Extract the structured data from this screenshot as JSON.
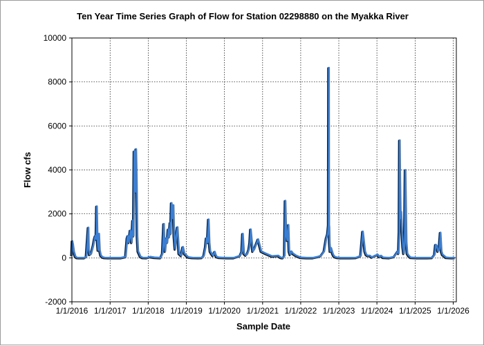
{
  "chart_data": {
    "type": "line",
    "title": "Ten Year Time Series Graph of Flow for Station 02298880 on the Myakka River",
    "xlabel": "Sample Date",
    "ylabel": "Flow cfs",
    "ylim": [
      -2000,
      10000
    ],
    "yticks": [
      -2000,
      0,
      2000,
      4000,
      6000,
      8000,
      10000
    ],
    "xlim": [
      "2016-01-01",
      "2026-01-31"
    ],
    "xticks": [
      "1/1/2016",
      "1/1/2017",
      "1/1/2018",
      "1/1/2019",
      "1/1/2020",
      "1/1/2021",
      "1/1/2022",
      "1/1/2023",
      "1/1/2024",
      "1/1/2025",
      "1/1/2026"
    ],
    "grid": true,
    "line_color": "#3a7fd5",
    "shadow_color": "#1a1a1a",
    "series": [
      {
        "x": [
          "2016-01-01",
          "2016-01-06",
          "2016-01-12",
          "2016-01-22",
          "2016-02-05",
          "2016-02-20",
          "2016-03-10",
          "2016-04-01",
          "2016-05-01",
          "2016-05-20",
          "2016-06-08",
          "2016-06-12",
          "2016-06-20",
          "2016-07-05",
          "2016-07-25",
          "2016-08-06",
          "2016-08-14",
          "2016-08-22",
          "2016-08-28",
          "2016-09-04",
          "2016-09-10",
          "2016-09-18",
          "2016-09-25",
          "2016-10-05",
          "2016-10-20",
          "2016-11-10",
          "2016-12-15",
          "2017-01-20",
          "2017-03-01",
          "2017-04-15",
          "2017-06-01",
          "2017-06-15",
          "2017-06-22",
          "2017-07-01",
          "2017-07-15",
          "2017-07-28",
          "2017-08-08",
          "2017-08-15",
          "2017-08-22",
          "2017-08-30",
          "2017-09-08",
          "2017-09-14",
          "2017-09-20",
          "2017-09-28",
          "2017-10-08",
          "2017-10-20",
          "2017-11-10",
          "2017-12-20",
          "2018-01-20",
          "2018-03-01",
          "2018-05-01",
          "2018-05-20",
          "2018-06-01",
          "2018-06-06",
          "2018-06-14",
          "2018-06-24",
          "2018-07-04",
          "2018-07-14",
          "2018-07-22",
          "2018-08-01",
          "2018-08-06",
          "2018-08-14",
          "2018-08-24",
          "2018-09-01",
          "2018-09-08",
          "2018-09-18",
          "2018-09-28",
          "2018-10-10",
          "2018-10-25",
          "2018-11-15",
          "2018-11-22",
          "2018-12-01",
          "2018-12-15",
          "2019-01-05",
          "2019-01-14",
          "2019-01-25",
          "2019-03-01",
          "2019-05-01",
          "2019-06-01",
          "2019-06-20",
          "2019-07-06",
          "2019-07-14",
          "2019-07-24",
          "2019-08-04",
          "2019-08-12",
          "2019-08-20",
          "2019-09-01",
          "2019-09-15",
          "2019-10-01",
          "2019-10-10",
          "2019-10-20",
          "2019-11-10",
          "2019-12-20",
          "2020-02-01",
          "2020-04-01",
          "2020-06-01",
          "2020-06-18",
          "2020-06-26",
          "2020-07-08",
          "2020-07-25",
          "2020-08-10",
          "2020-08-25",
          "2020-09-03",
          "2020-09-10",
          "2020-09-20",
          "2020-10-01",
          "2020-10-15",
          "2020-11-20",
          "2020-12-20",
          "2021-02-01",
          "2021-04-01",
          "2021-06-01",
          "2021-06-12",
          "2021-06-20",
          "2021-07-01",
          "2021-07-10",
          "2021-07-18",
          "2021-08-01",
          "2021-08-08",
          "2021-08-16",
          "2021-08-26",
          "2021-09-06",
          "2021-09-14",
          "2021-09-24",
          "2021-10-05",
          "2021-10-20",
          "2021-11-20",
          "2022-01-01",
          "2022-03-01",
          "2022-05-01",
          "2022-06-15",
          "2022-07-15",
          "2022-08-15",
          "2022-09-05",
          "2022-09-18",
          "2022-09-26",
          "2022-09-29",
          "2022-10-01",
          "2022-10-03",
          "2022-10-06",
          "2022-10-12",
          "2022-10-20",
          "2022-11-05",
          "2022-11-14",
          "2022-11-25",
          "2022-12-15",
          "2023-01-15",
          "2023-03-01",
          "2023-05-01",
          "2023-06-15",
          "2023-07-10",
          "2023-08-01",
          "2023-08-20",
          "2023-08-30",
          "2023-09-10",
          "2023-09-22",
          "2023-10-05",
          "2023-10-25",
          "2023-11-15",
          "2023-12-15",
          "2024-01-10",
          "2024-01-25",
          "2024-02-10",
          "2024-03-01",
          "2024-04-01",
          "2024-05-01",
          "2024-06-15",
          "2024-07-20",
          "2024-07-28",
          "2024-08-04",
          "2024-08-08",
          "2024-08-12",
          "2024-08-17",
          "2024-08-22",
          "2024-08-30",
          "2024-09-08",
          "2024-09-16",
          "2024-09-24",
          "2024-10-01",
          "2024-10-09",
          "2024-10-12",
          "2024-10-20",
          "2024-11-01",
          "2024-11-20",
          "2024-12-20",
          "2025-01-20",
          "2025-03-01",
          "2025-05-01",
          "2025-06-15",
          "2025-07-08",
          "2025-07-18",
          "2025-07-28",
          "2025-08-10",
          "2025-08-22",
          "2025-09-02",
          "2025-09-12",
          "2025-09-22",
          "2025-10-05",
          "2025-10-25",
          "2025-11-20",
          "2025-12-20",
          "2026-01-20"
        ],
        "y": [
          100,
          760,
          620,
          280,
          60,
          10,
          5,
          5,
          5,
          60,
          1380,
          350,
          150,
          200,
          560,
          870,
          1000,
          850,
          2350,
          700,
          350,
          1100,
          350,
          120,
          40,
          10,
          5,
          5,
          5,
          5,
          50,
          900,
          1000,
          700,
          1250,
          700,
          1700,
          1000,
          4850,
          3000,
          4950,
          3500,
          1000,
          300,
          200,
          60,
          10,
          5,
          50,
          20,
          5,
          200,
          1550,
          700,
          300,
          900,
          700,
          1300,
          950,
          1600,
          1100,
          2500,
          1800,
          2400,
          1000,
          400,
          1050,
          1400,
          200,
          100,
          300,
          500,
          200,
          100,
          60,
          30,
          10,
          5,
          10,
          100,
          500,
          900,
          700,
          1750,
          700,
          300,
          200,
          100,
          280,
          150,
          50,
          20,
          10,
          5,
          5,
          100,
          300,
          1100,
          200,
          120,
          200,
          400,
          700,
          1300,
          800,
          300,
          400,
          850,
          300,
          200,
          80,
          100,
          60,
          30,
          10,
          5,
          5,
          100,
          2600,
          1100,
          800,
          1500,
          300,
          150,
          300,
          200,
          100,
          20,
          5,
          5,
          50,
          100,
          300,
          900,
          1100,
          1500,
          8650,
          1500,
          1400,
          700,
          300,
          450,
          200,
          100,
          50,
          20,
          5,
          5,
          5,
          10,
          50,
          100,
          1200,
          800,
          300,
          150,
          100,
          100,
          30,
          100,
          150,
          50,
          100,
          20,
          10,
          5,
          50,
          300,
          200,
          1200,
          5350,
          3500,
          1800,
          2100,
          1200,
          500,
          200,
          600,
          4000,
          1500,
          700,
          200,
          100,
          20,
          10,
          5,
          5,
          5,
          10,
          150,
          600,
          550,
          300,
          400,
          1150,
          300,
          150,
          100,
          20,
          10,
          5,
          5
        ]
      }
    ]
  }
}
